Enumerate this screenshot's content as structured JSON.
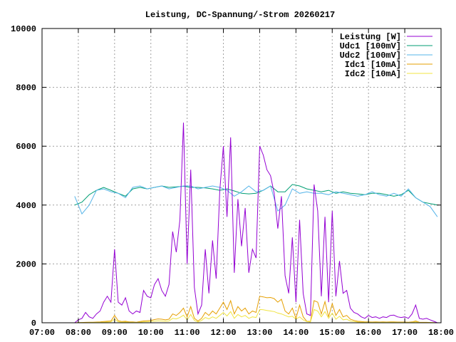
{
  "chart_data": {
    "type": "line",
    "title": "Leistung, DC-Spannung/-Strom 20260217",
    "xlabel": "",
    "ylabel": "",
    "xlim": [
      7,
      18
    ],
    "ylim": [
      0,
      10000
    ],
    "grid": true,
    "legend_position": "top-right",
    "x_ticks": [
      "07:00",
      "08:00",
      "09:00",
      "10:00",
      "11:00",
      "12:00",
      "13:00",
      "14:00",
      "15:00",
      "16:00",
      "17:00",
      "18:00"
    ],
    "y_ticks": [
      "0",
      "2000",
      "4000",
      "6000",
      "8000",
      "10000"
    ],
    "series": [
      {
        "name": "Leistung [W]",
        "color": "#9400d3",
        "start": 7.9,
        "step": 0.1,
        "values": [
          0,
          100,
          150,
          350,
          200,
          150,
          300,
          400,
          700,
          900,
          700,
          2500,
          700,
          600,
          850,
          400,
          300,
          400,
          350,
          1100,
          900,
          850,
          1300,
          1500,
          1100,
          900,
          1300,
          3100,
          2400,
          3500,
          6800,
          2000,
          5200,
          1200,
          300,
          600,
          2500,
          1000,
          2800,
          1500,
          4500,
          6000,
          3600,
          6300,
          1700,
          4200,
          2600,
          3900,
          1700,
          2500,
          2200,
          6000,
          5700,
          5200,
          5000,
          4400,
          3200,
          4300,
          1600,
          1000,
          2900,
          700,
          3500,
          1000,
          300,
          250,
          4700,
          3800,
          900,
          3600,
          700,
          3800,
          900,
          2100,
          1000,
          1100,
          500,
          350,
          300,
          200,
          150,
          250,
          180,
          200,
          150,
          200,
          180,
          250,
          260,
          200,
          180,
          200,
          150,
          300,
          600,
          150,
          120,
          150,
          100,
          50,
          0
        ]
      },
      {
        "name": "Udc1 [100mV]",
        "color": "#009e73",
        "start": 7.9,
        "step": 0.2,
        "values": [
          4000,
          4100,
          4350,
          4500,
          4600,
          4500,
          4400,
          4300,
          4550,
          4600,
          4550,
          4600,
          4650,
          4600,
          4620,
          4640,
          4600,
          4600,
          4580,
          4550,
          4500,
          4550,
          4480,
          4400,
          4380,
          4400,
          4500,
          4650,
          4450,
          4450,
          4700,
          4650,
          4550,
          4500,
          4450,
          4500,
          4400,
          4450,
          4400,
          4380,
          4350,
          4400,
          4400,
          4350,
          4300,
          4350,
          4500,
          4250,
          4100,
          4050,
          4000
        ]
      },
      {
        "name": "Udc2 [100mV]",
        "color": "#56b4e9",
        "start": 7.9,
        "step": 0.2,
        "values": [
          4300,
          3700,
          4000,
          4500,
          4550,
          4450,
          4400,
          4250,
          4600,
          4650,
          4550,
          4600,
          4650,
          4550,
          4600,
          4650,
          4650,
          4550,
          4600,
          4650,
          4600,
          4500,
          4300,
          4450,
          4650,
          4450,
          4500,
          4650,
          3800,
          4000,
          4550,
          4400,
          4450,
          4400,
          4400,
          4350,
          4450,
          4400,
          4350,
          4300,
          4350,
          4450,
          4350,
          4300,
          4400,
          4300,
          4550,
          4250,
          4100,
          3950,
          3600
        ]
      },
      {
        "name": "Idc1 [10mA]",
        "color": "#e69f00",
        "start": 7.9,
        "step": 0.1,
        "values": [
          0,
          5,
          10,
          15,
          20,
          20,
          25,
          30,
          40,
          50,
          60,
          250,
          70,
          40,
          50,
          30,
          30,
          20,
          40,
          60,
          70,
          80,
          110,
          130,
          120,
          100,
          120,
          300,
          250,
          350,
          500,
          200,
          550,
          150,
          60,
          150,
          350,
          250,
          400,
          300,
          500,
          700,
          450,
          750,
          300,
          550,
          400,
          500,
          300,
          400,
          350,
          900,
          880,
          850,
          860,
          820,
          700,
          800,
          400,
          300,
          500,
          150,
          600,
          200,
          50,
          40,
          750,
          700,
          300,
          720,
          200,
          650,
          250,
          450,
          200,
          250,
          120,
          80,
          50,
          40,
          30,
          30,
          25,
          30,
          25,
          30,
          25,
          30,
          30,
          25,
          25,
          25,
          20,
          30,
          60,
          20,
          15,
          15,
          10,
          5,
          0
        ]
      },
      {
        "name": "Idc2 [10mA]",
        "color": "#f0e442",
        "start": 7.9,
        "step": 0.1,
        "values": [
          0,
          3,
          5,
          8,
          10,
          10,
          12,
          15,
          20,
          25,
          30,
          120,
          35,
          20,
          25,
          15,
          15,
          10,
          20,
          30,
          35,
          40,
          55,
          65,
          60,
          50,
          60,
          150,
          130,
          180,
          260,
          100,
          280,
          80,
          30,
          80,
          180,
          130,
          200,
          150,
          250,
          350,
          230,
          380,
          150,
          280,
          200,
          250,
          150,
          200,
          180,
          450,
          440,
          420,
          400,
          380,
          330,
          300,
          250,
          200,
          220,
          120,
          200,
          100,
          40,
          30,
          450,
          400,
          200,
          380,
          150,
          330,
          120,
          220,
          100,
          120,
          60,
          40,
          25,
          20,
          15,
          15,
          12,
          15,
          12,
          15,
          12,
          15,
          15,
          12,
          12,
          12,
          10,
          15,
          30,
          10,
          8,
          8,
          5,
          3,
          0
        ]
      }
    ]
  }
}
